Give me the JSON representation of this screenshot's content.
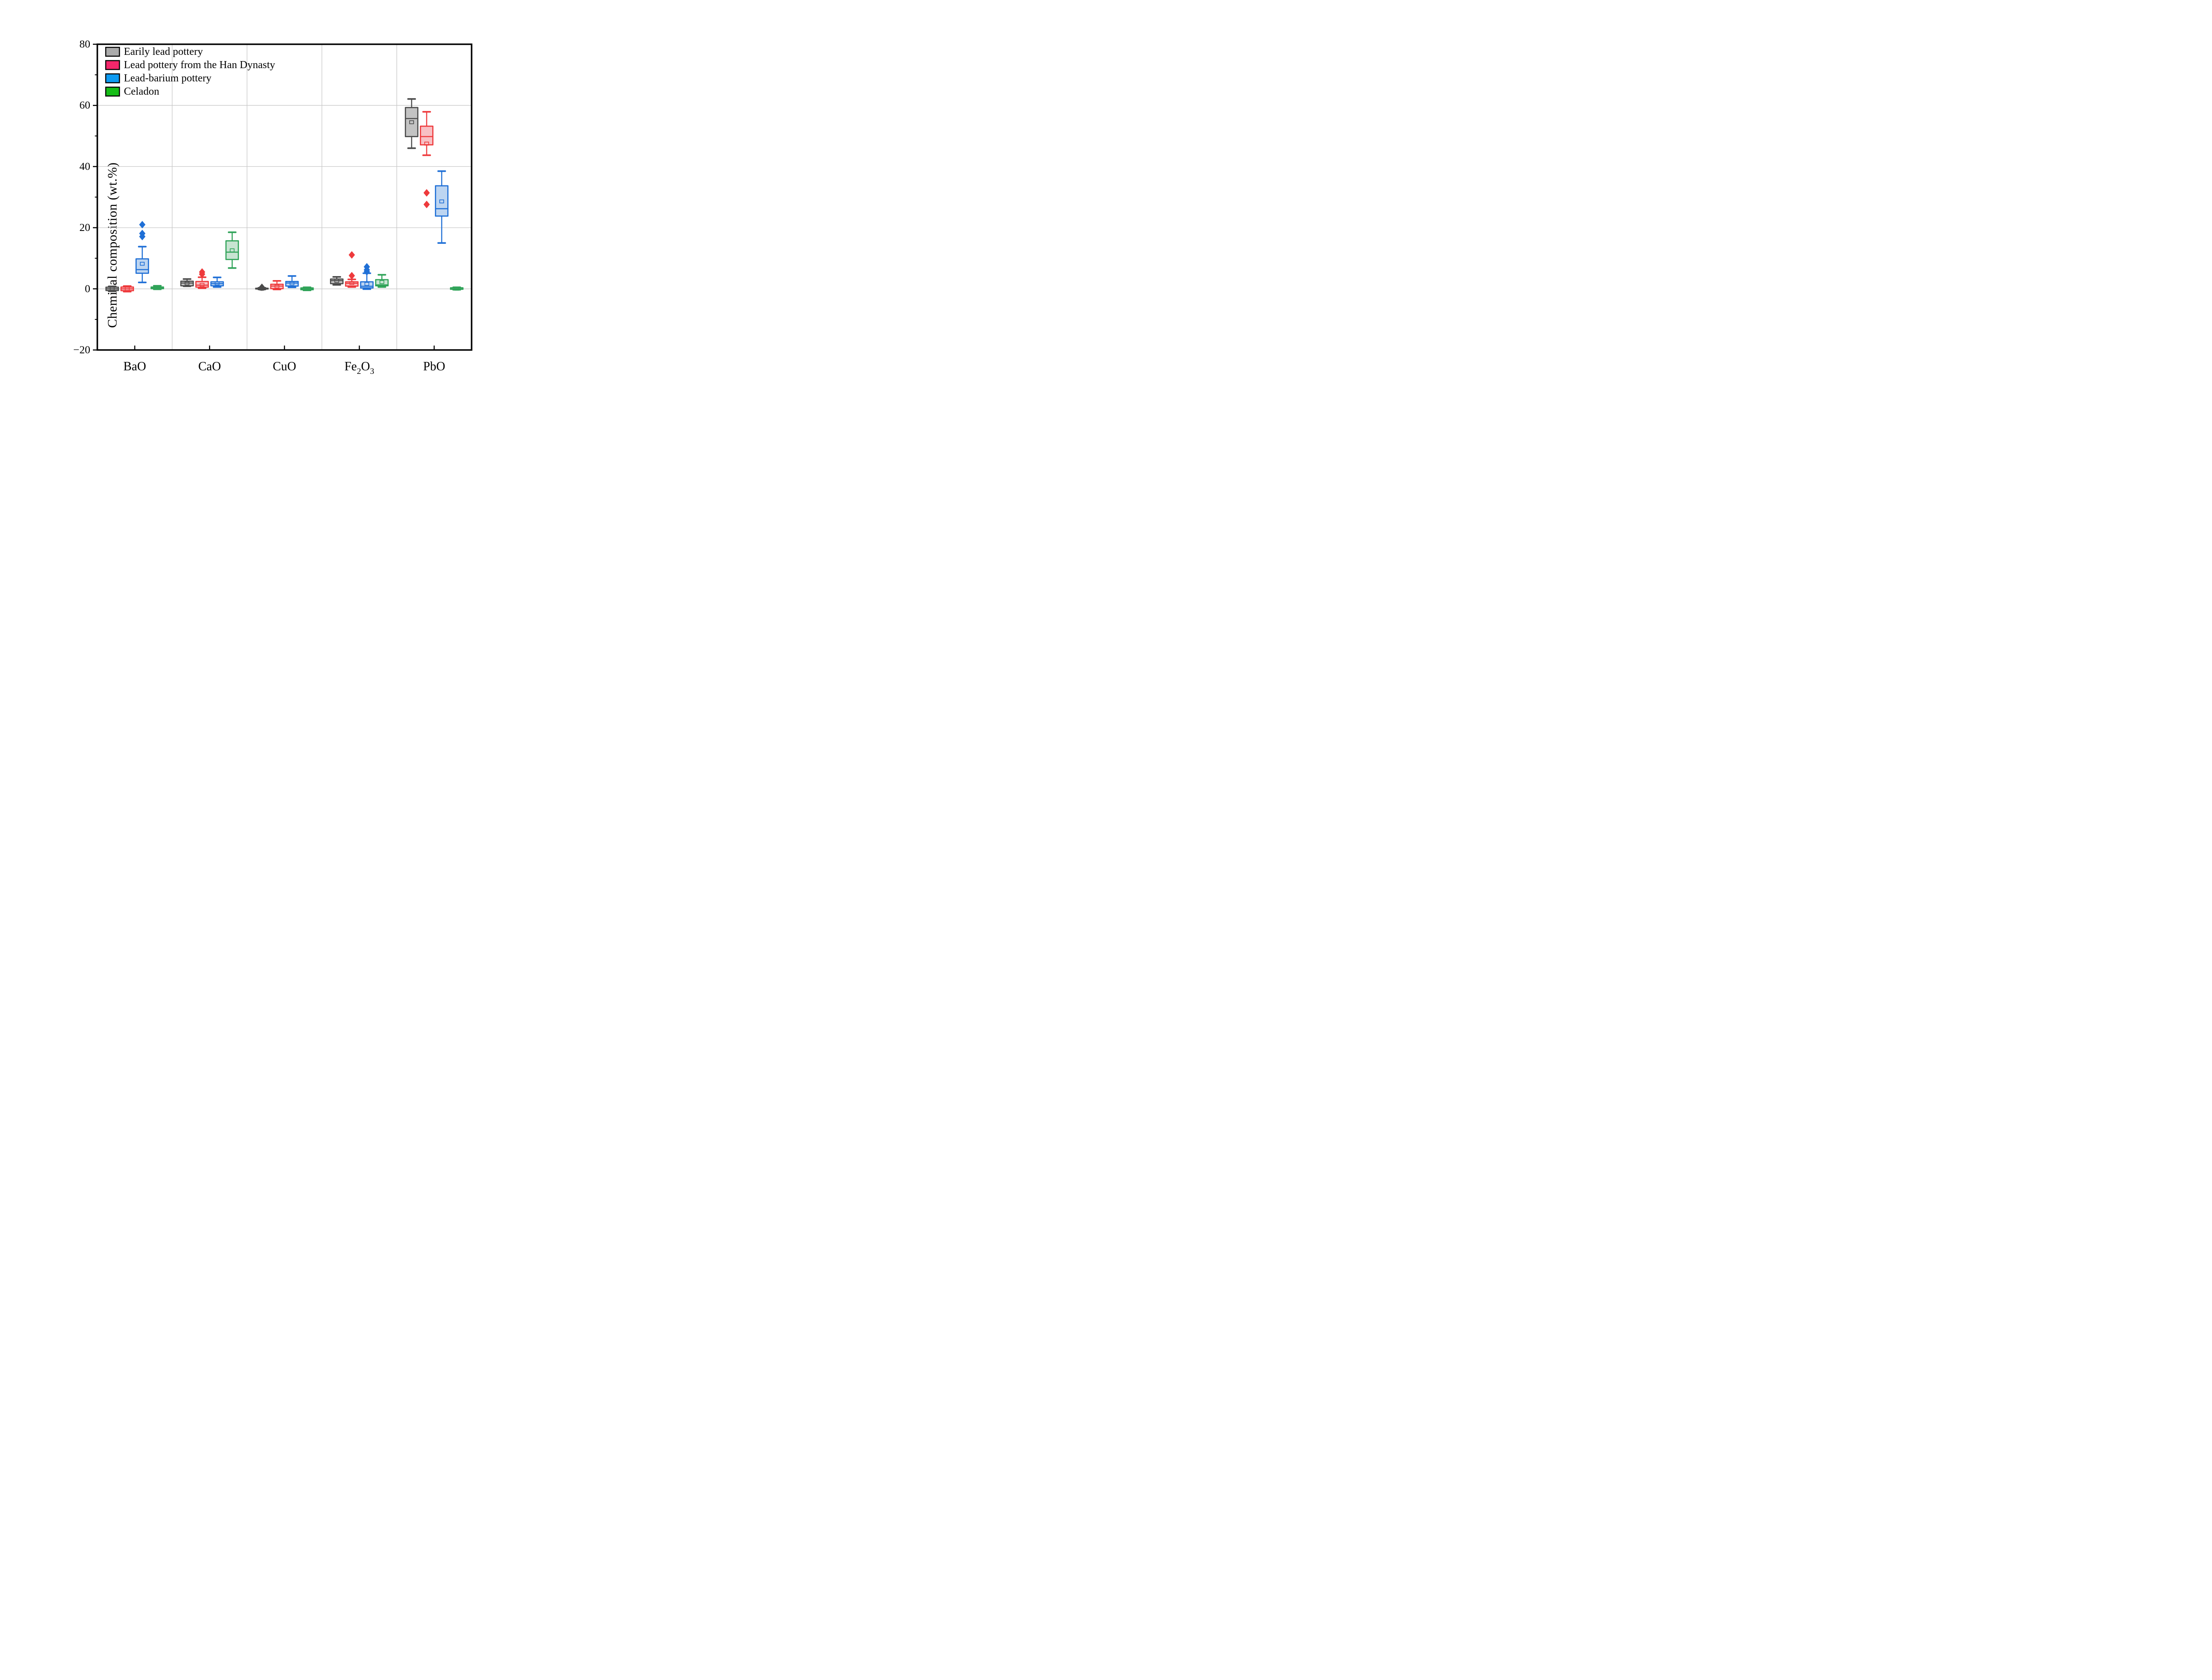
{
  "figure": {
    "ylabel": "Chemical composition (wt.%)"
  },
  "chart_data": {
    "type": "box",
    "title": "",
    "xlabel": "",
    "ylabel": "Chemical composition (wt.%)",
    "ylim": [
      -20,
      80
    ],
    "yticks": [
      80,
      60,
      40,
      20,
      0,
      -20
    ],
    "yticklabels": [
      "80",
      "60",
      "40",
      "20",
      "0",
      "−20"
    ],
    "minor_ytick_step": 10,
    "grid": {
      "horizontal": true,
      "vertical_category_separators": true,
      "color": "#c9c9c9"
    },
    "legend_position": "top-left-inside",
    "categories": [
      "BaO",
      "CaO",
      "CuO",
      "Fe2O3",
      "PbO"
    ],
    "category_labels": [
      [
        {
          "t": "BaO"
        }
      ],
      [
        {
          "t": "CaO"
        }
      ],
      [
        {
          "t": "CuO"
        }
      ],
      [
        {
          "t": "Fe"
        },
        {
          "t": "2",
          "sub": true
        },
        {
          "t": "O"
        },
        {
          "t": "3",
          "sub": true
        }
      ],
      [
        {
          "t": "PbO"
        }
      ]
    ],
    "series": [
      {
        "name": "Earily lead pottery",
        "edge_color": "#4a4a4a",
        "fill_color": "#c3c3c3",
        "legend_fill": "#ababab",
        "boxes": [
          {
            "low": -0.8,
            "q1": -0.55,
            "median": 0.0,
            "q3": 0.55,
            "high": 0.8,
            "mean": 0.05,
            "outliers": []
          },
          {
            "low": 0.85,
            "q1": 1.0,
            "median": 1.9,
            "q3": 2.5,
            "high": 3.2,
            "mean": 1.8,
            "outliers": []
          },
          {
            "low": -0.2,
            "q1": -0.05,
            "median": 0.05,
            "q3": 0.2,
            "high": 0.35,
            "mean": 0.05,
            "outliers": [
              0.5
            ]
          },
          {
            "low": 1.3,
            "q1": 1.7,
            "median": 2.7,
            "q3": 3.2,
            "high": 3.9,
            "mean": 2.6,
            "outliers": []
          },
          {
            "low": 46.0,
            "q1": 49.8,
            "median": 55.7,
            "q3": 59.3,
            "high": 62.1,
            "mean": 54.5,
            "outliers": []
          }
        ]
      },
      {
        "name": "Lead pottery from the Han Dynasty",
        "edge_color": "#ee3a3c",
        "fill_color": "#f8c0c4",
        "legend_fill": "#f3276b",
        "boxes": [
          {
            "low": -0.9,
            "q1": -0.6,
            "median": 0.0,
            "q3": 0.6,
            "high": 0.9,
            "mean": 0.0,
            "outliers": []
          },
          {
            "low": 0.2,
            "q1": 0.55,
            "median": 1.2,
            "q3": 2.4,
            "high": 3.8,
            "mean": 1.3,
            "outliers": [
              4.8,
              5.5
            ]
          },
          {
            "low": -0.2,
            "q1": 0.05,
            "median": 0.9,
            "q3": 1.5,
            "high": 2.6,
            "mean": 0.8,
            "outliers": []
          },
          {
            "low": 0.6,
            "q1": 0.9,
            "median": 1.8,
            "q3": 2.3,
            "high": 3.1,
            "mean": 1.9,
            "outliers": [
              4.3,
              11.1
            ]
          },
          {
            "low": 43.7,
            "q1": 47.1,
            "median": 49.8,
            "q3": 53.2,
            "high": 57.9,
            "mean": 47.5,
            "outliers": [
              31.4,
              27.6
            ]
          }
        ]
      },
      {
        "name": "Lead-barium pottery",
        "edge_color": "#1f6fd6",
        "fill_color": "#bdd5f1",
        "legend_fill": "#0d9bf2",
        "boxes": [
          {
            "low": 2.1,
            "q1": 5.1,
            "median": 6.3,
            "q3": 9.8,
            "high": 13.8,
            "mean": 8.2,
            "outliers": [
              17.1,
              18.1,
              21.0
            ]
          },
          {
            "low": 0.6,
            "q1": 1.0,
            "median": 1.7,
            "q3": 2.3,
            "high": 3.75,
            "mean": 1.75,
            "outliers": []
          },
          {
            "low": 0.5,
            "q1": 0.9,
            "median": 1.9,
            "q3": 2.4,
            "high": 4.2,
            "mean": 1.8,
            "outliers": []
          },
          {
            "low": -0.1,
            "q1": 0.3,
            "median": 0.85,
            "q3": 2.3,
            "high": 5.1,
            "mean": 1.6,
            "outliers": [
              5.6,
              6.2,
              7.2
            ]
          },
          {
            "low": 15.0,
            "q1": 23.8,
            "median": 26.2,
            "q3": 33.7,
            "high": 38.5,
            "mean": 28.6,
            "outliers": []
          }
        ]
      },
      {
        "name": "Celadon",
        "edge_color": "#30a359",
        "fill_color": "#c8e4d2",
        "legend_fill": "#16bd17",
        "boxes": [
          {
            "low": -0.15,
            "q1": 0.05,
            "median": 0.3,
            "q3": 0.6,
            "high": 1.0,
            "mean": 0.35,
            "outliers": []
          },
          {
            "low": 6.8,
            "q1": 9.6,
            "median": 12.0,
            "q3": 15.7,
            "high": 18.5,
            "mean": 12.6,
            "outliers": []
          },
          {
            "low": -0.5,
            "q1": -0.3,
            "median": 0.0,
            "q3": 0.3,
            "high": 0.5,
            "mean": 0.0,
            "outliers": []
          },
          {
            "low": 0.6,
            "q1": 1.0,
            "median": 1.3,
            "q3": 3.0,
            "high": 4.6,
            "mean": 2.2,
            "outliers": []
          },
          {
            "low": -0.3,
            "q1": -0.15,
            "median": 0.0,
            "q3": 0.35,
            "high": 0.5,
            "mean": 0.05,
            "outliers": []
          }
        ]
      }
    ]
  }
}
